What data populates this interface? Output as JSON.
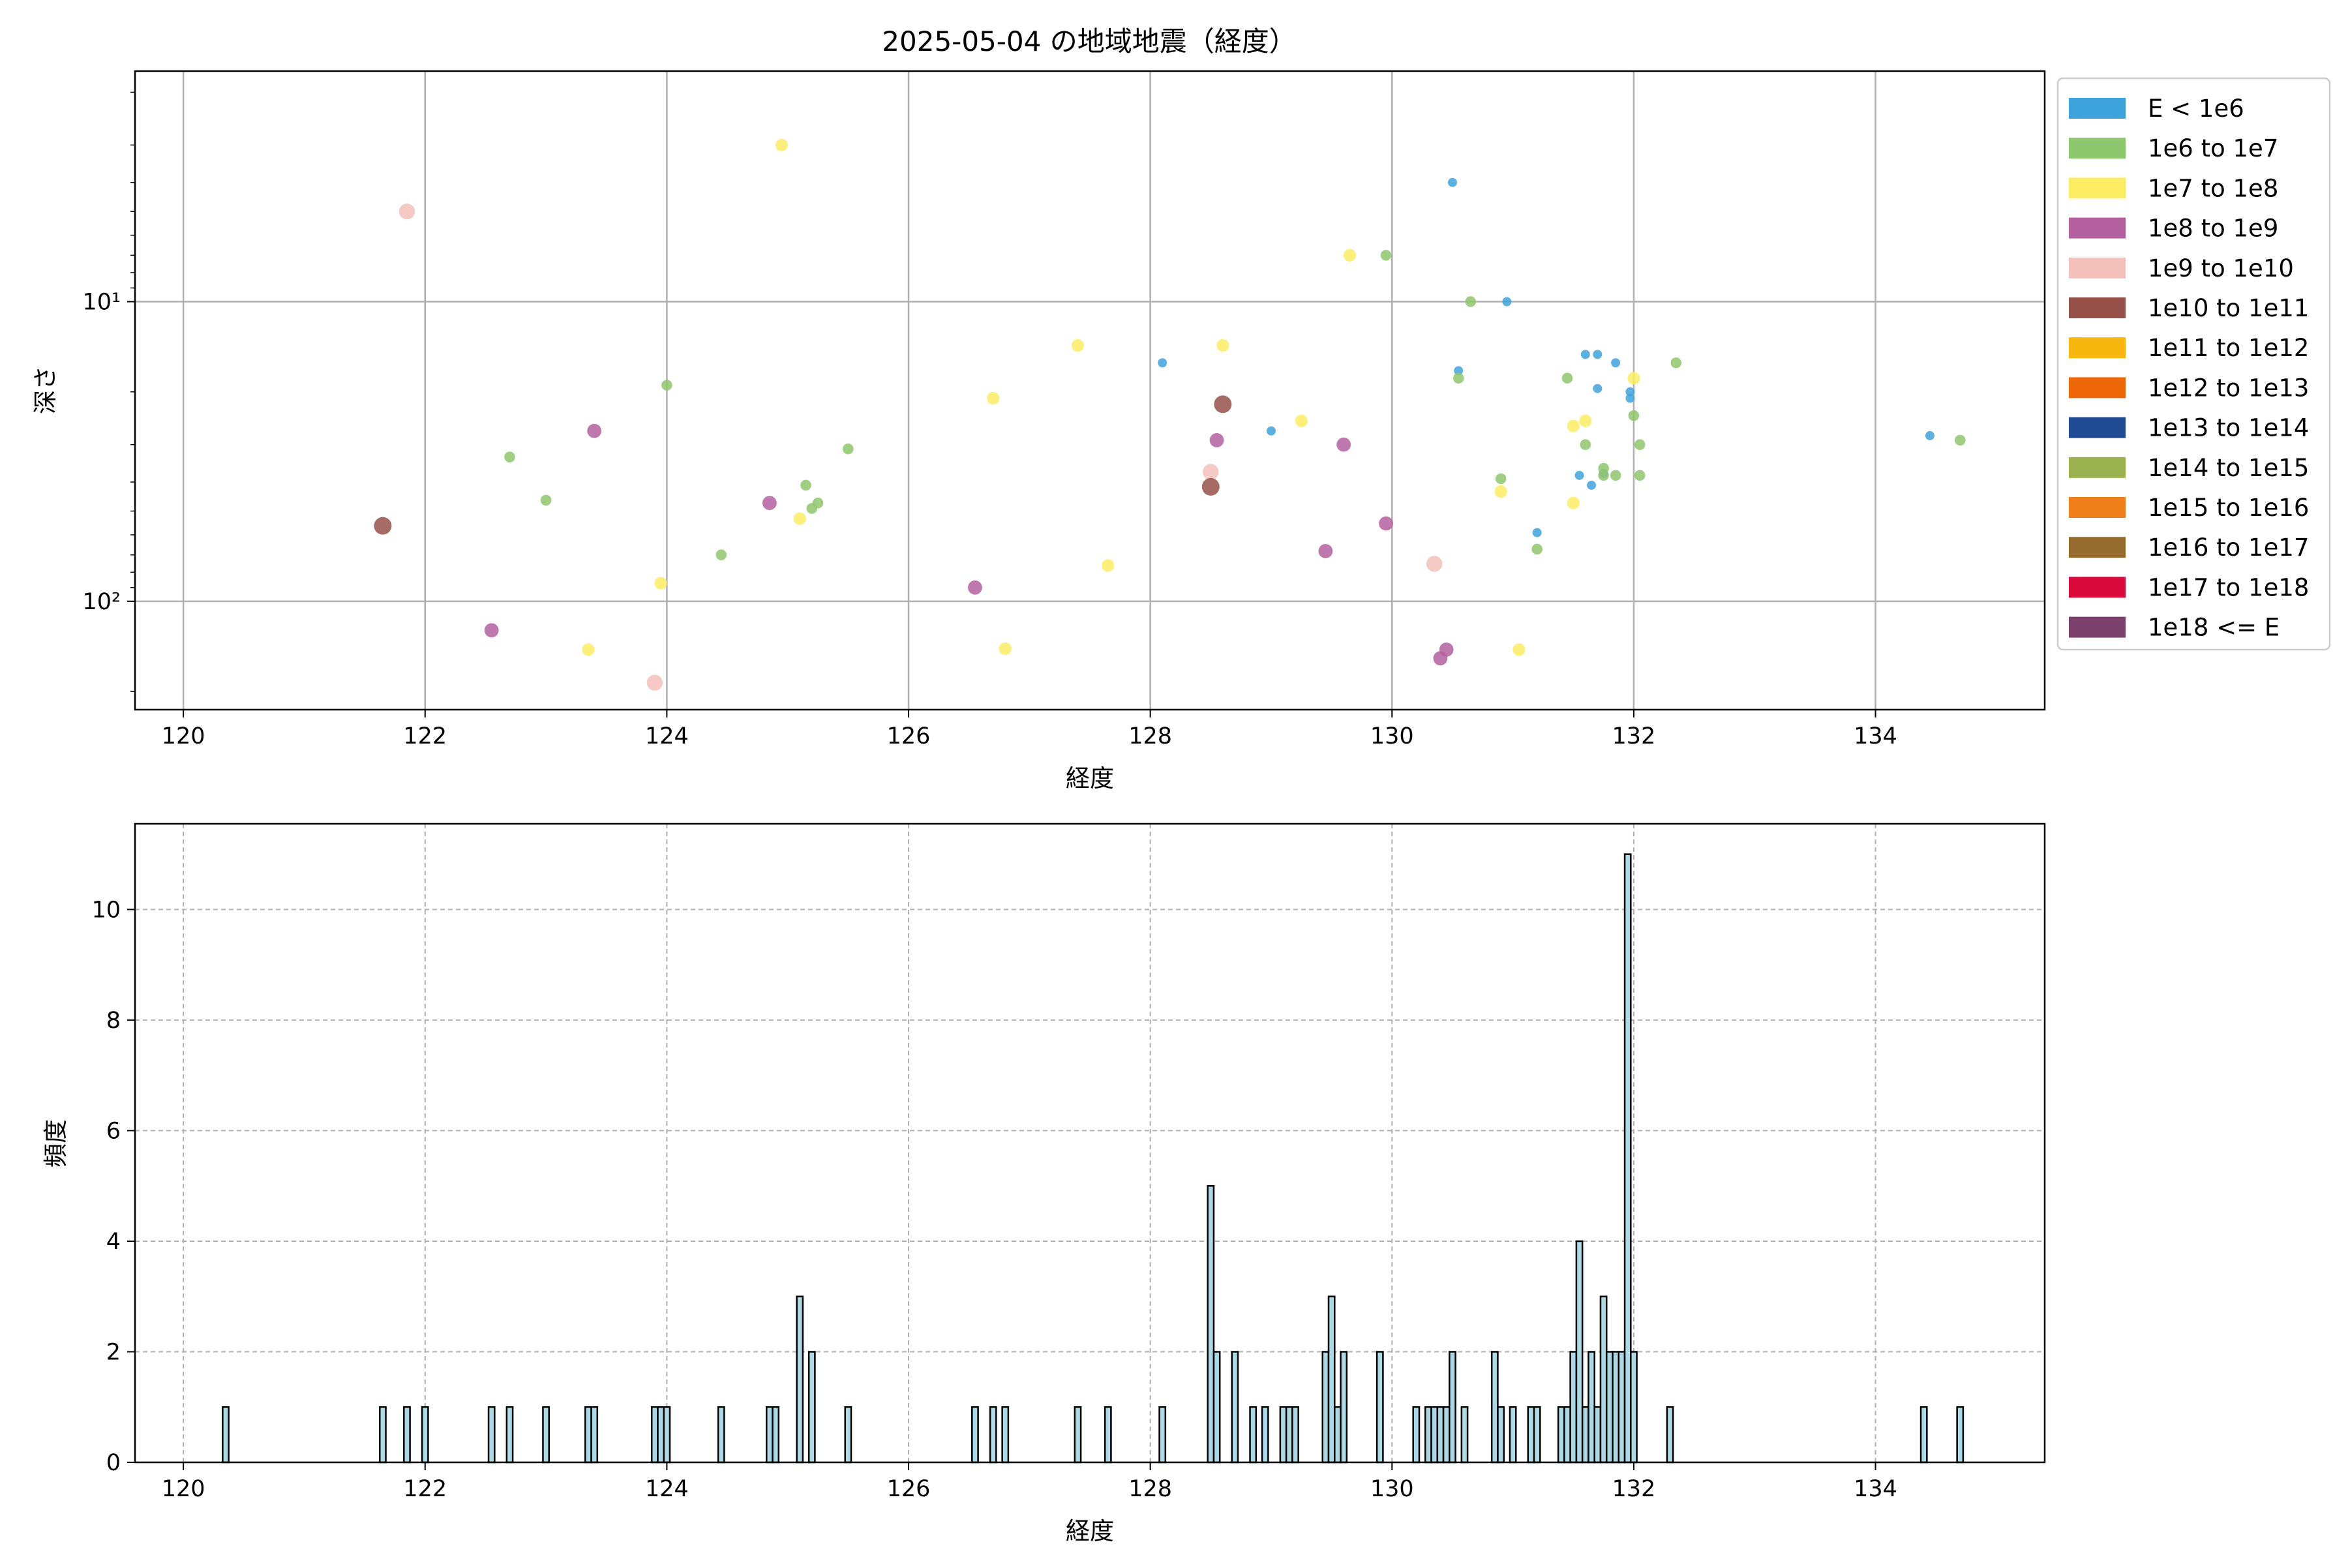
{
  "figure": {
    "title": "2025-05-04 の地域地震（経度）"
  },
  "chart_data": [
    {
      "type": "scatter",
      "xlabel": "経度",
      "ylabel": "深さ",
      "xlim": [
        119.6,
        135.4
      ],
      "ylim": [
        230,
        1.7
      ],
      "yscale": "log",
      "y_inverted": true,
      "xticks": [
        "120",
        "122",
        "124",
        "126",
        "128",
        "130",
        "132",
        "134"
      ],
      "yticks": [
        "10¹",
        "10²"
      ],
      "grid": true,
      "legend_position": "outside-right",
      "legend": [
        {
          "label": "E < 1e6",
          "color": "#3fa3db"
        },
        {
          "label": "1e6 to 1e7",
          "color": "#8fc76f"
        },
        {
          "label": "1e7 to 1e8",
          "color": "#fcec64"
        },
        {
          "label": "1e8 to 1e9",
          "color": "#b4609f"
        },
        {
          "label": "1e9 to 1e10",
          "color": "#f4c1ba"
        },
        {
          "label": "1e10 to 1e11",
          "color": "#955149"
        },
        {
          "label": "1e11 to 1e12",
          "color": "#f7b70f"
        },
        {
          "label": "1e12 to 1e13",
          "color": "#ed6709"
        },
        {
          "label": "1e13 to 1e14",
          "color": "#1f4b94"
        },
        {
          "label": "1e14 to 1e15",
          "color": "#9bb04e"
        },
        {
          "label": "1e15 to 1e16",
          "color": "#ef7f1a"
        },
        {
          "label": "1e16 to 1e17",
          "color": "#966b2f"
        },
        {
          "label": "1e17 to 1e18",
          "color": "#db0a3c"
        },
        {
          "label": "1e18 <= E",
          "color": "#7a3f6a"
        }
      ],
      "series": [
        {
          "name": "E < 1e6",
          "points": [
            [
              130.5,
              4.0
            ],
            [
              130.95,
              10.0
            ],
            [
              128.1,
              16.0
            ],
            [
              130.55,
              17.0
            ],
            [
              131.6,
              15.0
            ],
            [
              131.7,
              15.0
            ],
            [
              131.85,
              16.0
            ],
            [
              131.7,
              19.5
            ],
            [
              131.97,
              20.0
            ],
            [
              131.97,
              21.0
            ],
            [
              129.0,
              27.0
            ],
            [
              134.45,
              28.0
            ],
            [
              131.75,
              37.5
            ],
            [
              131.55,
              38.0
            ],
            [
              131.65,
              41.0
            ],
            [
              131.2,
              59.0
            ]
          ]
        },
        {
          "name": "1e6 to 1e7",
          "points": [
            [
              129.95,
              7.0
            ],
            [
              130.65,
              10.0
            ],
            [
              124.0,
              19.0
            ],
            [
              130.55,
              18.0
            ],
            [
              131.45,
              18.0
            ],
            [
              132.35,
              16.0
            ],
            [
              132.0,
              24.0
            ],
            [
              122.7,
              33.0
            ],
            [
              131.6,
              30.0
            ],
            [
              132.05,
              30.0
            ],
            [
              125.5,
              31.0
            ],
            [
              131.75,
              36.0
            ],
            [
              131.75,
              38.0
            ],
            [
              131.85,
              38.0
            ],
            [
              132.05,
              38.0
            ],
            [
              130.9,
              39.0
            ],
            [
              125.15,
              41.0
            ],
            [
              123.0,
              46.0
            ],
            [
              125.25,
              47.0
            ],
            [
              125.2,
              49.0
            ],
            [
              131.2,
              67.0
            ],
            [
              124.45,
              70.0
            ],
            [
              134.7,
              29.0
            ]
          ]
        },
        {
          "name": "1e7 to 1e8",
          "points": [
            [
              124.95,
              3.0
            ],
            [
              129.65,
              7.0
            ],
            [
              127.4,
              14.0
            ],
            [
              128.6,
              14.0
            ],
            [
              126.7,
              21.0
            ],
            [
              132.0,
              18.0
            ],
            [
              129.25,
              25.0
            ],
            [
              131.5,
              26.0
            ],
            [
              131.6,
              25.0
            ],
            [
              130.9,
              43.0
            ],
            [
              131.5,
              47.0
            ],
            [
              125.1,
              53.0
            ],
            [
              127.65,
              76.0
            ],
            [
              123.95,
              87.0
            ],
            [
              126.8,
              144.0
            ],
            [
              123.35,
              145.0
            ],
            [
              131.05,
              145.0
            ]
          ]
        },
        {
          "name": "1e8 to 1e9",
          "points": [
            [
              128.55,
              29.0
            ],
            [
              123.4,
              27.0
            ],
            [
              129.6,
              30.0
            ],
            [
              124.85,
              47.0
            ],
            [
              129.95,
              55.0
            ],
            [
              129.45,
              68.0
            ],
            [
              126.55,
              90.0
            ],
            [
              122.55,
              125.0
            ],
            [
              130.45,
              145.0
            ],
            [
              130.4,
              155.0
            ]
          ]
        },
        {
          "name": "1e9 to 1e10",
          "points": [
            [
              121.85,
              5.0
            ],
            [
              128.5,
              37.0
            ],
            [
              130.35,
              75.0
            ],
            [
              123.9,
              187.0
            ]
          ]
        },
        {
          "name": "1e10 to 1e11",
          "points": [
            [
              121.65,
              56.0
            ],
            [
              128.6,
              22.0
            ],
            [
              128.5,
              41.5
            ]
          ]
        }
      ]
    },
    {
      "type": "bar",
      "subtype": "histogram",
      "xlabel": "経度",
      "ylabel": "頻度",
      "xlim": [
        119.6,
        135.4
      ],
      "ylim": [
        0,
        11.55
      ],
      "bin_width": 0.05,
      "xticks": [
        "120",
        "122",
        "124",
        "126",
        "128",
        "130",
        "132",
        "134"
      ],
      "yticks": [
        "0",
        "2",
        "4",
        "6",
        "8",
        "10"
      ],
      "grid": true,
      "bar_color": "#add8e6",
      "edge_color": "#000000",
      "x": [
        120.35,
        121.65,
        121.85,
        122.0,
        122.55,
        122.7,
        123.0,
        123.35,
        123.4,
        123.9,
        123.95,
        124.0,
        124.45,
        124.85,
        124.9,
        125.1,
        125.2,
        125.5,
        126.55,
        126.7,
        126.8,
        127.4,
        127.65,
        128.1,
        128.5,
        128.55,
        128.7,
        128.85,
        128.95,
        129.1,
        129.15,
        129.2,
        129.45,
        129.5,
        129.55,
        129.6,
        129.9,
        130.2,
        130.3,
        130.35,
        130.4,
        130.45,
        130.5,
        130.6,
        130.85,
        130.9,
        131.0,
        131.15,
        131.2,
        131.4,
        131.45,
        131.5,
        131.55,
        131.6,
        131.65,
        131.7,
        131.75,
        131.8,
        131.85,
        131.9,
        131.95,
        132.0,
        132.3,
        134.4,
        134.7
      ],
      "values": [
        1,
        1,
        1,
        1,
        1,
        1,
        1,
        1,
        1,
        1,
        1,
        1,
        1,
        1,
        1,
        3,
        2,
        1,
        1,
        1,
        1,
        1,
        1,
        1,
        5,
        2,
        2,
        1,
        1,
        1,
        1,
        1,
        2,
        3,
        1,
        2,
        2,
        1,
        1,
        1,
        1,
        1,
        2,
        1,
        2,
        1,
        1,
        1,
        1,
        1,
        1,
        2,
        4,
        1,
        2,
        1,
        3,
        2,
        2,
        2,
        11,
        2,
        1,
        1,
        1
      ]
    }
  ]
}
